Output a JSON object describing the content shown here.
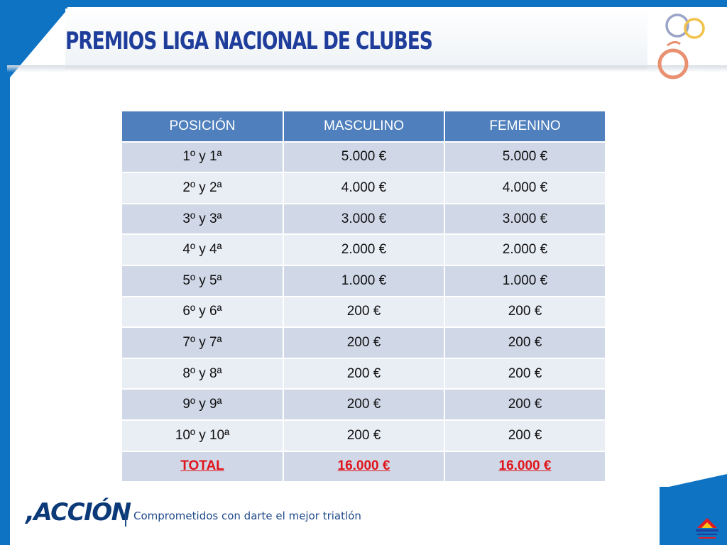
{
  "title": "PREMIOS LIGA NACIONAL DE CLUBES",
  "table": {
    "headers": [
      "POSICIÓN",
      "MASCULINO",
      "FEMENINO"
    ],
    "rows": [
      [
        "1º y 1ª",
        "5.000 €",
        "5.000 €"
      ],
      [
        "2º y 2ª",
        "4.000 €",
        "4.000 €"
      ],
      [
        "3º y 3ª",
        "3.000 €",
        "3.000 €"
      ],
      [
        "4º y 4ª",
        "2.000 €",
        "2.000 €"
      ],
      [
        "5º y 5ª",
        "1.000 €",
        "1.000 €"
      ],
      [
        "6º y 6ª",
        "200 €",
        "200 €"
      ],
      [
        "7º y 7ª",
        "200 €",
        "200 €"
      ],
      [
        "8º y 8ª",
        "200 €",
        "200 €"
      ],
      [
        "9º y 9ª",
        "200 €",
        "200 €"
      ],
      [
        "10º y 10ª",
        "200 €",
        "200 €"
      ]
    ],
    "total": [
      "TOTAL",
      "16.000 €",
      "16.000 €"
    ]
  },
  "footer": {
    "brand": ",ACCIÓN",
    "tagline": "Comprometidos con darte el mejor triatlón"
  },
  "colors": {
    "frame": "#0f73c4",
    "title": "#1f3d9a",
    "header_bg": "#4f80bd",
    "row_dark": "#d0d8e8",
    "row_light": "#e9edf4",
    "total_text": "#e0151b"
  },
  "icons": {
    "top_right": "olympic-rings-logo-icon",
    "bottom_right": "federation-logo-icon"
  }
}
